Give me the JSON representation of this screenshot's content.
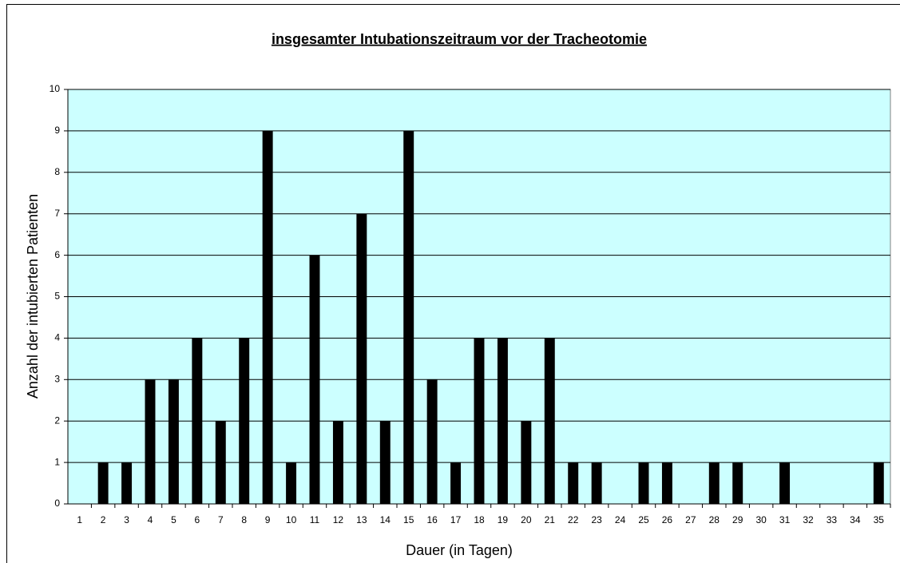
{
  "chart_data": {
    "type": "bar",
    "title": "insgesamter Intubationszeitraum vor der Tracheotomie",
    "x_label": "Dauer (in Tagen)",
    "y_label": "Anzahl der intubierten Patienten",
    "categories": [
      "1",
      "2",
      "3",
      "4",
      "5",
      "6",
      "7",
      "8",
      "9",
      "10",
      "11",
      "12",
      "13",
      "14",
      "15",
      "16",
      "17",
      "18",
      "19",
      "20",
      "21",
      "22",
      "23",
      "24",
      "25",
      "26",
      "27",
      "28",
      "29",
      "30",
      "31",
      "32",
      "33",
      "34",
      "35"
    ],
    "values": [
      0,
      1,
      1,
      3,
      3,
      4,
      2,
      4,
      9,
      1,
      6,
      2,
      7,
      2,
      9,
      3,
      1,
      4,
      4,
      2,
      4,
      1,
      1,
      0,
      1,
      1,
      0,
      1,
      1,
      0,
      1,
      0,
      0,
      0,
      1
    ],
    "color": "#000000",
    "ylim": [
      0,
      10
    ],
    "yticks": [
      0,
      1,
      2,
      3,
      4,
      5,
      6,
      7,
      8,
      9,
      10
    ],
    "grid": true
  }
}
